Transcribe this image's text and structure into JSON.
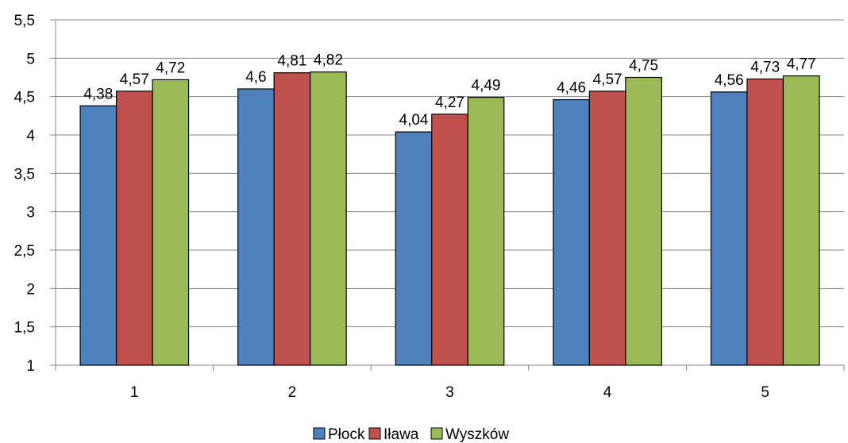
{
  "chart_data": {
    "type": "bar",
    "title": "",
    "xlabel": "",
    "ylabel": "",
    "categories": [
      "1",
      "2",
      "3",
      "4",
      "5"
    ],
    "ylim": [
      1,
      5.5
    ],
    "yticks": [
      "1",
      "1,5",
      "2",
      "2,5",
      "3",
      "3,5",
      "4",
      "4,5",
      "5",
      "5,5"
    ],
    "grid": true,
    "legend_position": "bottom",
    "series": [
      {
        "name": "Płock",
        "color": "#4F81BD",
        "values": [
          4.38,
          4.6,
          4.04,
          4.46,
          4.56
        ],
        "labels": [
          "4,38",
          "4,6",
          "4,04",
          "4,46",
          "4,56"
        ]
      },
      {
        "name": "Iława",
        "color": "#C0504D",
        "values": [
          4.57,
          4.81,
          4.27,
          4.57,
          4.73
        ],
        "labels": [
          "4,57",
          "4,81",
          "4,27",
          "4,57",
          "4,73"
        ]
      },
      {
        "name": "Wyszków",
        "color": "#9BBB59",
        "values": [
          4.72,
          4.82,
          4.49,
          4.75,
          4.77
        ],
        "labels": [
          "4,72",
          "4,82",
          "4,49",
          "4,75",
          "4,77"
        ]
      }
    ]
  }
}
